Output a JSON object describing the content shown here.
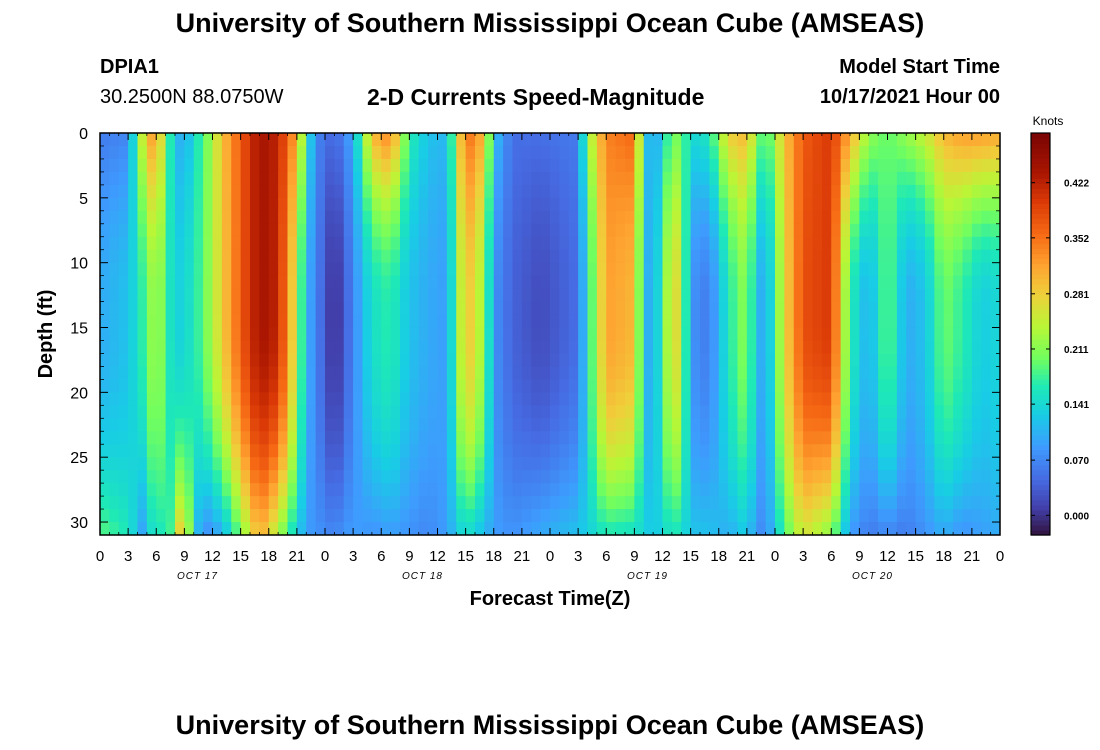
{
  "page": {
    "top_title": "University of Southern Mississippi Ocean Cube (AMSEAS)",
    "bottom_title": "University of Southern Mississippi Ocean Cube (AMSEAS)",
    "station_id": "DPIA1",
    "station_coords": "30.2500N  88.0750W",
    "chart_title": "2-D Currents Speed-Magnitude",
    "model_start_label": "Model Start Time",
    "model_start_value": "10/17/2021 Hour 00"
  },
  "chart_data": {
    "type": "heatmap",
    "title": "2-D Currents Speed-Magnitude",
    "xlabel": "Forecast Time(Z)",
    "ylabel": "Depth (ft)",
    "x_tick_labels": [
      "0",
      "3",
      "6",
      "9",
      "12",
      "15",
      "18",
      "21",
      "0",
      "3",
      "6",
      "9",
      "12",
      "15",
      "18",
      "21",
      "0",
      "3",
      "6",
      "9",
      "12",
      "15",
      "18",
      "21",
      "0",
      "3",
      "6",
      "9",
      "12",
      "15",
      "18",
      "21",
      "0"
    ],
    "x_range_hours": [
      0,
      96
    ],
    "day_labels": [
      {
        "label": "OCT 17",
        "center_hour": 12
      },
      {
        "label": "OCT 18",
        "center_hour": 36
      },
      {
        "label": "OCT 19",
        "center_hour": 60
      },
      {
        "label": "OCT 20",
        "center_hour": 84
      }
    ],
    "y_tick_labels": [
      "0",
      "5",
      "10",
      "15",
      "20",
      "25",
      "30"
    ],
    "y_ticks": [
      0,
      5,
      10,
      15,
      20,
      25,
      30
    ],
    "ylim": [
      0,
      31
    ],
    "y_inverted": true,
    "colorbar": {
      "unit_label": "Knots",
      "tick_labels": [
        "0.422",
        "0.352",
        "0.281",
        "0.211",
        "0.141",
        "0.070",
        "0.000"
      ],
      "tick_values": [
        0.422,
        0.352,
        0.281,
        0.211,
        0.141,
        0.07,
        0.0
      ],
      "range": [
        -0.025,
        0.485
      ]
    },
    "grid": {
      "time_step_hours": 1,
      "depth_step_ft": 1
    },
    "speed_columns": [
      {
        "hour": 0,
        "top": 0.06,
        "mid": 0.1,
        "bot": 0.19
      },
      {
        "hour": 3,
        "top": 0.07,
        "mid": 0.12,
        "bot": 0.16
      },
      {
        "hour": 4,
        "top": 0.2,
        "mid": 0.15,
        "bot": 0.12
      },
      {
        "hour": 5,
        "top": 0.3,
        "mid": 0.19,
        "bot": 0.07
      },
      {
        "hour": 6,
        "top": 0.33,
        "mid": 0.24,
        "bot": 0.22
      },
      {
        "hour": 7,
        "top": 0.21,
        "mid": 0.18,
        "bot": 0.1
      },
      {
        "hour": 8,
        "top": 0.12,
        "mid": 0.13,
        "bot": 0.26
      },
      {
        "hour": 9,
        "top": 0.09,
        "mid": 0.14,
        "bot": 0.3
      },
      {
        "hour": 10,
        "top": 0.15,
        "mid": 0.16,
        "bot": 0.14
      },
      {
        "hour": 11,
        "top": 0.18,
        "mid": 0.19,
        "bot": 0.07
      },
      {
        "hour": 13,
        "top": 0.29,
        "mid": 0.28,
        "bot": 0.1
      },
      {
        "hour": 15,
        "top": 0.37,
        "mid": 0.37,
        "bot": 0.2
      },
      {
        "hour": 17,
        "top": 0.44,
        "mid": 0.44,
        "bot": 0.31
      },
      {
        "hour": 19,
        "top": 0.42,
        "mid": 0.42,
        "bot": 0.23
      },
      {
        "hour": 21,
        "top": 0.31,
        "mid": 0.24,
        "bot": 0.13
      },
      {
        "hour": 22,
        "top": 0.17,
        "mid": 0.11,
        "bot": 0.09
      },
      {
        "hour": 23,
        "top": 0.07,
        "mid": 0.07,
        "bot": 0.08
      },
      {
        "hour": 25,
        "top": 0.04,
        "mid": -0.01,
        "bot": 0.07
      },
      {
        "hour": 27,
        "top": 0.1,
        "mid": 0.07,
        "bot": 0.09
      },
      {
        "hour": 29,
        "top": 0.3,
        "mid": 0.15,
        "bot": 0.08
      },
      {
        "hour": 31,
        "top": 0.34,
        "mid": 0.17,
        "bot": 0.09
      },
      {
        "hour": 33,
        "top": 0.17,
        "mid": 0.12,
        "bot": 0.08
      },
      {
        "hour": 35,
        "top": 0.12,
        "mid": 0.1,
        "bot": 0.07
      },
      {
        "hour": 37,
        "top": 0.11,
        "mid": 0.09,
        "bot": 0.09
      },
      {
        "hour": 39,
        "top": 0.36,
        "mid": 0.3,
        "bot": 0.15
      },
      {
        "hour": 41,
        "top": 0.3,
        "mid": 0.22,
        "bot": 0.11
      },
      {
        "hour": 42,
        "top": 0.12,
        "mid": 0.08,
        "bot": 0.09
      },
      {
        "hour": 44,
        "top": 0.05,
        "mid": 0.04,
        "bot": 0.08
      },
      {
        "hour": 47,
        "top": 0.05,
        "mid": 0.02,
        "bot": 0.1
      },
      {
        "hour": 51,
        "top": 0.06,
        "mid": 0.05,
        "bot": 0.12
      },
      {
        "hour": 52,
        "top": 0.22,
        "mid": 0.15,
        "bot": 0.13
      },
      {
        "hour": 54,
        "top": 0.34,
        "mid": 0.32,
        "bot": 0.16
      },
      {
        "hour": 57,
        "top": 0.36,
        "mid": 0.3,
        "bot": 0.15
      },
      {
        "hour": 58,
        "top": 0.15,
        "mid": 0.12,
        "bot": 0.14
      },
      {
        "hour": 59,
        "top": 0.08,
        "mid": 0.09,
        "bot": 0.12
      },
      {
        "hour": 61,
        "top": 0.2,
        "mid": 0.28,
        "bot": 0.16
      },
      {
        "hour": 62,
        "top": 0.2,
        "mid": 0.25,
        "bot": 0.15
      },
      {
        "hour": 63,
        "top": 0.14,
        "mid": 0.08,
        "bot": 0.12
      },
      {
        "hour": 65,
        "top": 0.16,
        "mid": 0.06,
        "bot": 0.12
      },
      {
        "hour": 67,
        "top": 0.28,
        "mid": 0.16,
        "bot": 0.1
      },
      {
        "hour": 69,
        "top": 0.3,
        "mid": 0.22,
        "bot": 0.13
      },
      {
        "hour": 70,
        "top": 0.22,
        "mid": 0.12,
        "bot": 0.08
      },
      {
        "hour": 71,
        "top": 0.17,
        "mid": 0.09,
        "bot": 0.07
      },
      {
        "hour": 73,
        "top": 0.29,
        "mid": 0.27,
        "bot": 0.18
      },
      {
        "hour": 75,
        "top": 0.37,
        "mid": 0.38,
        "bot": 0.26
      },
      {
        "hour": 78,
        "top": 0.4,
        "mid": 0.4,
        "bot": 0.21
      },
      {
        "hour": 80,
        "top": 0.31,
        "mid": 0.17,
        "bot": 0.09
      },
      {
        "hour": 82,
        "top": 0.22,
        "mid": 0.1,
        "bot": 0.06
      },
      {
        "hour": 84,
        "top": 0.19,
        "mid": 0.2,
        "bot": 0.07
      },
      {
        "hour": 86,
        "top": 0.22,
        "mid": 0.1,
        "bot": 0.06
      },
      {
        "hour": 88,
        "top": 0.25,
        "mid": 0.12,
        "bot": 0.08
      },
      {
        "hour": 90,
        "top": 0.3,
        "mid": 0.2,
        "bot": 0.1
      },
      {
        "hour": 92,
        "top": 0.32,
        "mid": 0.17,
        "bot": 0.08
      },
      {
        "hour": 94,
        "top": 0.32,
        "mid": 0.13,
        "bot": 0.09
      },
      {
        "hour": 96,
        "top": 0.31,
        "mid": 0.14,
        "bot": 0.1
      }
    ]
  }
}
